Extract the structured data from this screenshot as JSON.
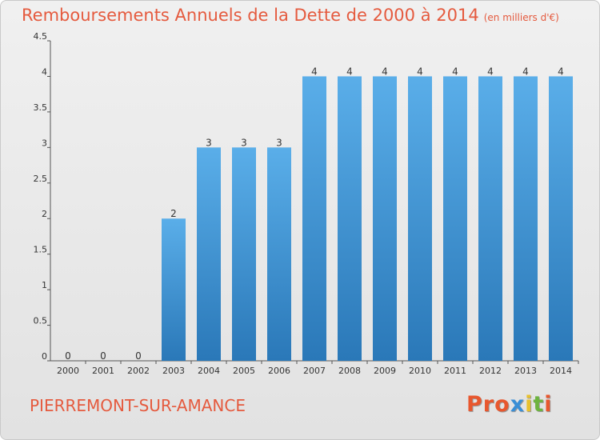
{
  "header": {
    "title": "Remboursements Annuels de la Dette de 2000 à 2014",
    "unit": "(en milliers d'€)"
  },
  "footer": {
    "commune": "PIERREMONT-SUR-AMANCE",
    "logo_text": "Proxiti"
  },
  "chart_data": {
    "type": "bar",
    "title": "Remboursements Annuels de la Dette de 2000 à 2014",
    "subtitle": "(en milliers d'€)",
    "categories": [
      "2000",
      "2001",
      "2002",
      "2003",
      "2004",
      "2005",
      "2006",
      "2007",
      "2008",
      "2009",
      "2010",
      "2011",
      "2012",
      "2013",
      "2014"
    ],
    "values": [
      0,
      0,
      0,
      2,
      3,
      3,
      3,
      4,
      4,
      4,
      4,
      4,
      4,
      4,
      4
    ],
    "data_labels": [
      "0",
      "0",
      "0",
      "2",
      "3",
      "3",
      "3",
      "4",
      "4",
      "4",
      "4",
      "4",
      "4",
      "4",
      "4"
    ],
    "y_ticks": [
      0,
      0.5,
      1,
      1.5,
      2,
      2.5,
      3,
      3.5,
      4,
      4.5
    ],
    "y_tick_labels": [
      "0",
      "0.5",
      "1",
      "1.5",
      "2",
      "2.5",
      "3",
      "3.5",
      "4",
      "4.5"
    ],
    "ylim": [
      0,
      4.5
    ],
    "xlabel": "",
    "ylabel": "",
    "grid": false,
    "bar_color": "#3d8fd4"
  }
}
